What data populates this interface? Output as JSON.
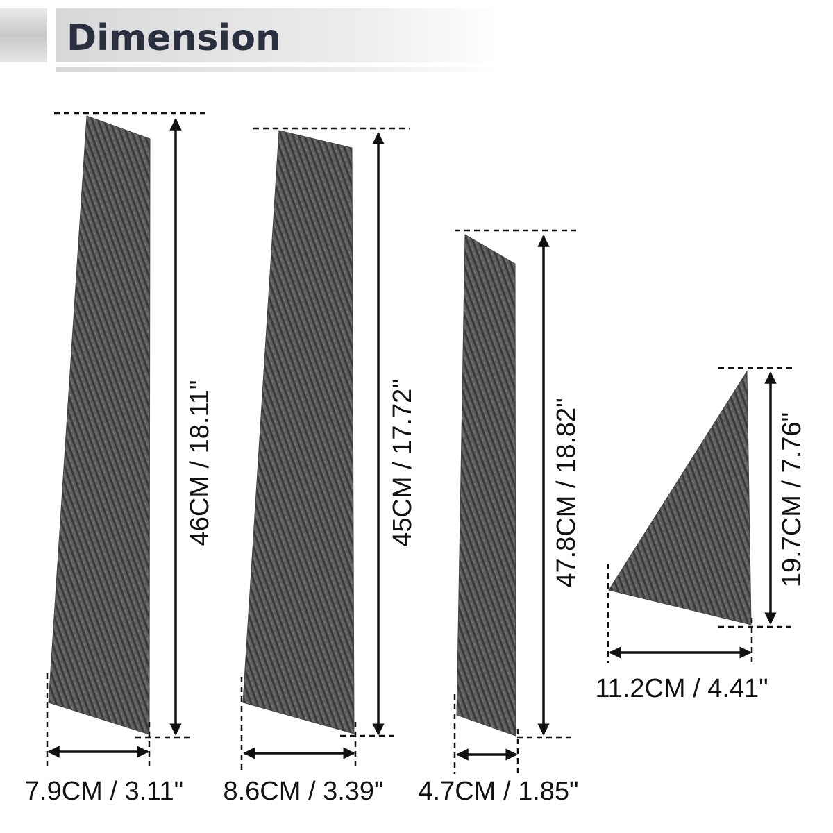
{
  "header": {
    "title": "Dimension"
  },
  "pieces": [
    {
      "height": "46CM / 18.11\"",
      "width": "7.9CM / 3.11\""
    },
    {
      "height": "45CM / 17.72\"",
      "width": "8.6CM / 3.39\""
    },
    {
      "height": "47.8CM / 18.82\"",
      "width": "4.7CM / 1.85\""
    },
    {
      "height": "19.7CM / 7.76\"",
      "width": "11.2CM / 4.41\""
    }
  ]
}
